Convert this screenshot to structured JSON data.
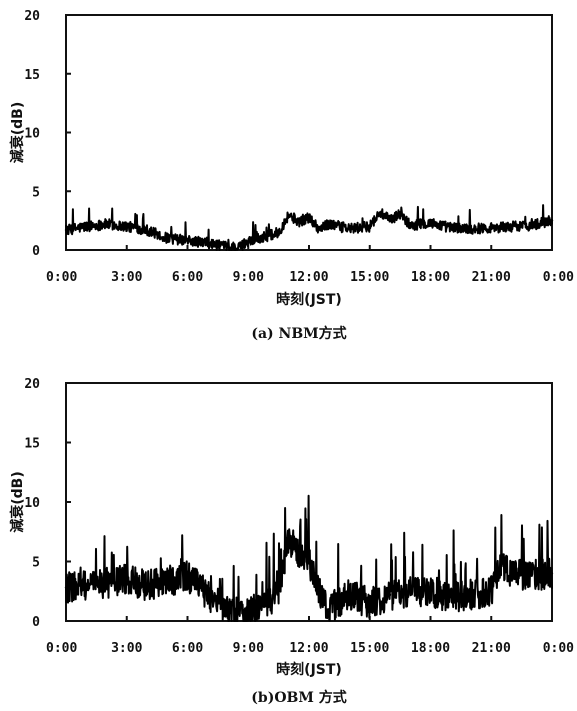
{
  "chart_data": [
    {
      "type": "line",
      "caption": "(a) NBM方式",
      "xlabel": "時刻(JST)",
      "ylabel": "減衰(dB)",
      "ylim": [
        0,
        20
      ],
      "yticks": [
        "0",
        "5",
        "10",
        "15",
        "20"
      ],
      "xlim": [
        0,
        24
      ],
      "xticks": [
        "0:00",
        "3:00",
        "6:00",
        "9:00",
        "12:00",
        "15:00",
        "18:00",
        "21:00",
        "0:00"
      ],
      "grid": false,
      "series": [
        {
          "x": [
            0,
            1,
            2,
            3,
            4,
            5,
            6,
            7,
            8,
            8.5,
            9,
            10,
            10.5,
            11,
            11.5,
            12,
            12.5,
            13,
            14,
            15,
            15.5,
            16,
            16.5,
            17,
            18,
            19,
            20,
            21,
            22,
            23,
            24
          ],
          "values": [
            1.7,
            2.0,
            2.2,
            2.0,
            1.7,
            1.0,
            0.8,
            0.6,
            0.2,
            0.1,
            0.8,
            1.2,
            1.5,
            3.0,
            2.4,
            2.8,
            1.8,
            2.2,
            1.8,
            2.0,
            3.2,
            2.5,
            3.1,
            2.1,
            2.3,
            1.9,
            1.8,
            1.9,
            2.0,
            2.1,
            2.5
          ]
        }
      ]
    },
    {
      "type": "line",
      "caption": "(b)OBM 方式",
      "xlabel": "時刻(JST)",
      "ylabel": "減衰(dB)",
      "ylim": [
        0,
        20
      ],
      "yticks": [
        "0",
        "5",
        "10",
        "15",
        "20"
      ],
      "xlim": [
        0,
        24
      ],
      "xticks": [
        "0:00",
        "3:00",
        "6:00",
        "9:00",
        "12:00",
        "15:00",
        "18:00",
        "21:00",
        "0:00"
      ],
      "grid": false,
      "series": [
        {
          "x": [
            0,
            1,
            2,
            3,
            4,
            5,
            6,
            7,
            8,
            9,
            10,
            10.5,
            11,
            11.5,
            12,
            12.5,
            13,
            14,
            15,
            16,
            17,
            18,
            19,
            20,
            21,
            21.5,
            22,
            23,
            24
          ],
          "values": [
            2.8,
            3.0,
            3.2,
            3.5,
            3.0,
            3.3,
            3.8,
            2.2,
            0.8,
            0.8,
            1.5,
            2.5,
            7.0,
            5.5,
            5.0,
            2.5,
            1.0,
            2.2,
            1.5,
            2.2,
            2.5,
            2.5,
            2.0,
            2.2,
            2.5,
            5.0,
            4.0,
            3.8,
            4.0
          ]
        }
      ]
    }
  ]
}
